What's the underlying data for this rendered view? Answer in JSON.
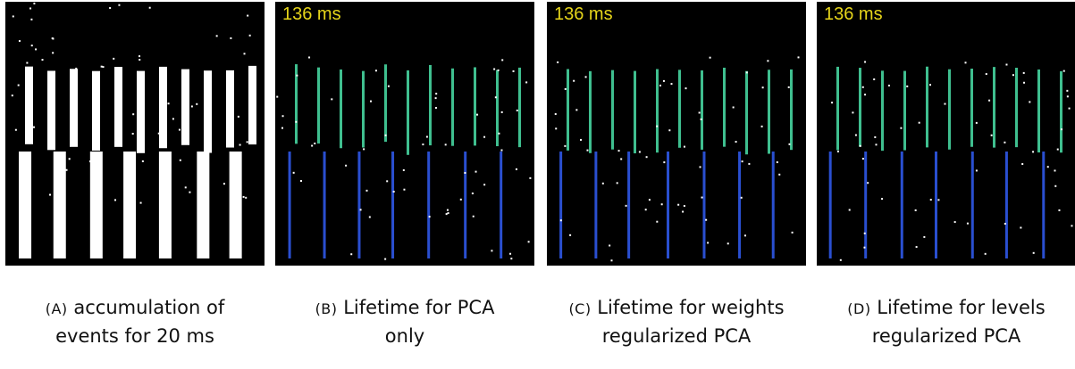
{
  "panels": [
    {
      "overlay": null,
      "label": "(A)",
      "caption_lines": [
        "accumulation of",
        "events for 20 ms"
      ]
    },
    {
      "overlay": "136 ms",
      "label": "(B)",
      "caption_lines": [
        "Lifetime for PCA",
        "only"
      ]
    },
    {
      "overlay": "136 ms",
      "label": "(C)",
      "caption_lines": [
        "Lifetime for weights",
        "regularized PCA"
      ]
    },
    {
      "overlay": "136 ms",
      "label": "(D)",
      "caption_lines": [
        "Lifetime for levels",
        "regularized PCA"
      ]
    }
  ]
}
